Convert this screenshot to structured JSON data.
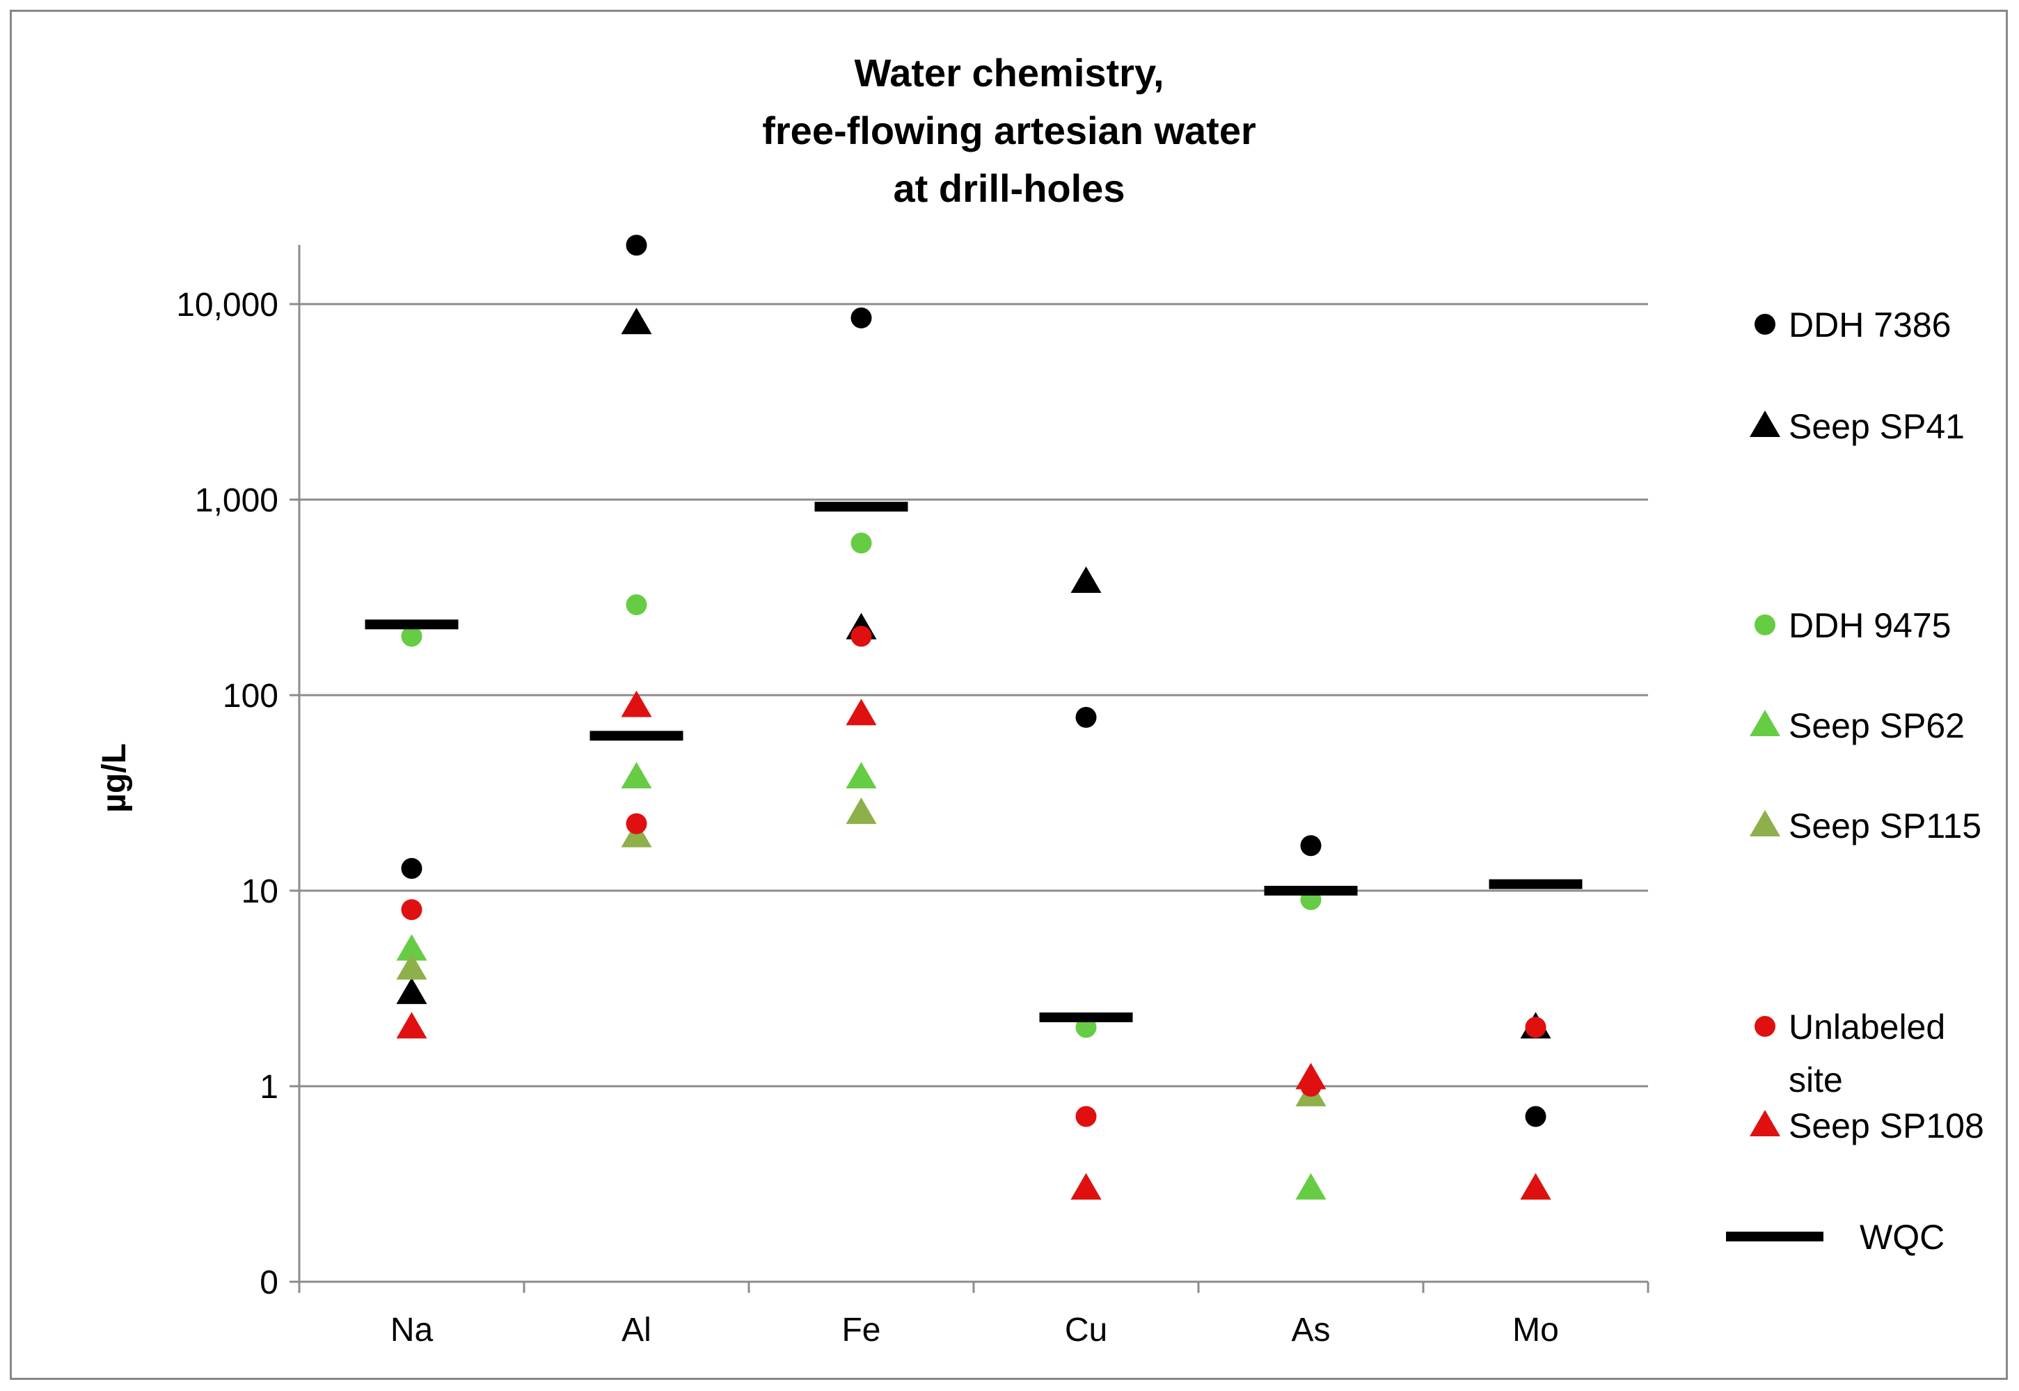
{
  "chart_data": {
    "type": "scatter",
    "title_lines": [
      "Water chemistry,",
      "free-flowing artesian water",
      "at drill-holes"
    ],
    "ylabel": "µg/L",
    "xlabel": "",
    "yscale": "log",
    "ylim": [
      0.1,
      30000
    ],
    "yticks": [
      0.1,
      1,
      10,
      100,
      1000,
      10000
    ],
    "ytick_labels": [
      "0",
      "1",
      "10",
      "100",
      "1,000",
      "10,000"
    ],
    "categories": [
      "Na",
      "Al",
      "Fe",
      "Cu",
      "As",
      "Mo"
    ],
    "grid": "horizontal",
    "legend_position": "right",
    "series": [
      {
        "name": "DDH 7386",
        "marker": "circle",
        "color": "#000000",
        "values": [
          13,
          20000,
          8500,
          77,
          17,
          0.7
        ]
      },
      {
        "name": "Seep SP41",
        "marker": "triangle",
        "color": "#000000",
        "values": [
          3,
          8000,
          220,
          380,
          null,
          2
        ]
      },
      {
        "name": "DDH 9475",
        "marker": "circle",
        "color": "#66cc44",
        "values": [
          200,
          290,
          600,
          2,
          9,
          2
        ]
      },
      {
        "name": "Seep SP62",
        "marker": "triangle",
        "color": "#66cc44",
        "values": [
          5,
          38,
          38,
          0.3,
          0.3,
          0.3
        ]
      },
      {
        "name": "Seep SP115",
        "marker": "triangle",
        "color": "#8db04a",
        "values": [
          4,
          19,
          25,
          0.3,
          0.9,
          0.3
        ]
      },
      {
        "name": "Unlabeled site",
        "marker": "circle",
        "color": "#e01010",
        "values": [
          8,
          22,
          200,
          0.7,
          1,
          2
        ]
      },
      {
        "name": "Seep SP108",
        "marker": "triangle",
        "color": "#e01010",
        "values": [
          2,
          88,
          80,
          0.3,
          1.1,
          0.3
        ]
      },
      {
        "name": "WQC",
        "marker": "dash",
        "color": "#000000",
        "values": [
          230,
          62,
          920,
          2.25,
          10,
          10.8
        ]
      }
    ],
    "legend_lines": [
      [
        "DDH 7386"
      ],
      [
        "Seep SP41"
      ],
      [
        "DDH 9475"
      ],
      [
        "Seep SP62"
      ],
      [
        "Seep SP115"
      ],
      [
        "Unlabeled",
        "site"
      ],
      [
        "Seep SP108"
      ],
      [
        "WQC"
      ]
    ]
  }
}
